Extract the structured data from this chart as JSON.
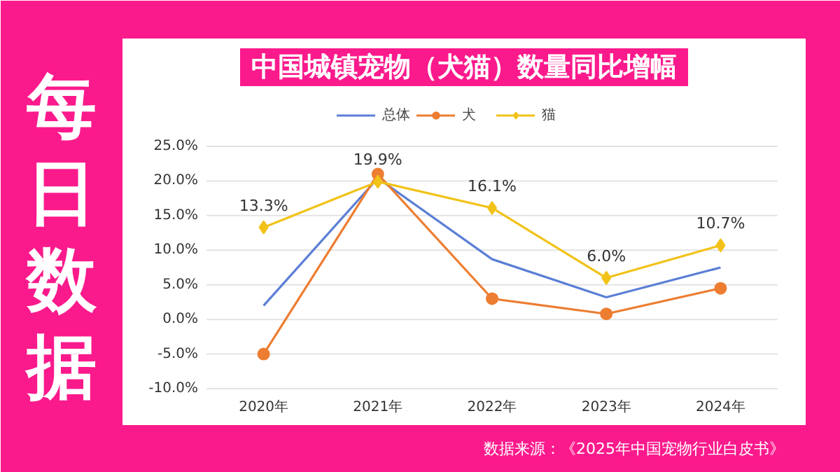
{
  "chart_data": {
    "type": "line",
    "title": "中国城镇宠物（犬猫）数量同比增幅",
    "annotations": [
      "每日数据",
      "数据来源：《2025年中国宠物行业白皮书》"
    ],
    "categories": [
      "2020年",
      "2021年",
      "2022年",
      "2023年",
      "2024年"
    ],
    "series": [
      {
        "name": "总体",
        "color": "#5b7fd6",
        "marker": "none",
        "values": [
          2.0,
          20.4,
          8.7,
          3.2,
          7.5
        ]
      },
      {
        "name": "犬",
        "color": "#ed7d31",
        "marker": "circle",
        "values": [
          -5.0,
          21.0,
          3.0,
          0.8,
          4.5
        ]
      },
      {
        "name": "猫",
        "color": "#f2c218",
        "marker": "diamond",
        "values": [
          13.3,
          19.9,
          16.1,
          6.0,
          10.7
        ],
        "value_labels": [
          "13.3%",
          "19.9%",
          "16.1%",
          "6.0%",
          "10.7%"
        ]
      }
    ],
    "ylim": [
      -10,
      25
    ],
    "yticks": [
      {
        "value": -10,
        "label": "-10.0%"
      },
      {
        "value": -5,
        "label": "-5.0%"
      },
      {
        "value": 0,
        "label": "0.0%"
      },
      {
        "value": 5,
        "label": "5.0%"
      },
      {
        "value": 10,
        "label": "10.0%"
      },
      {
        "value": 15,
        "label": "15.0%"
      },
      {
        "value": 20,
        "label": "20.0%"
      },
      {
        "value": 25,
        "label": "25.0%"
      }
    ],
    "grid": "y",
    "legend": "top",
    "line_style": "solid"
  }
}
